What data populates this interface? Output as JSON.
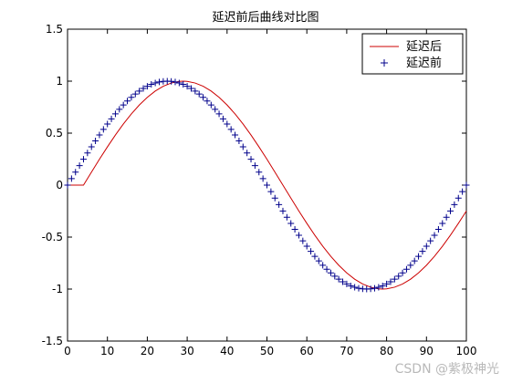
{
  "chart_data": {
    "type": "line",
    "title": "延迟前后曲线对比图",
    "xlabel": "",
    "ylabel": "",
    "xlim": [
      0,
      100
    ],
    "ylim": [
      -1.5,
      1.5
    ],
    "xticks": [
      0,
      10,
      20,
      30,
      40,
      50,
      60,
      70,
      80,
      90,
      100
    ],
    "yticks": [
      -1.5,
      -1,
      -0.5,
      0,
      0.5,
      1,
      1.5
    ],
    "xtick_labels": [
      "0",
      "10",
      "20",
      "30",
      "40",
      "50",
      "60",
      "70",
      "80",
      "90",
      "100"
    ],
    "ytick_labels": [
      "-1.5",
      "-1",
      "-0.5",
      "0",
      "0.5",
      "1",
      "1.5"
    ],
    "grid": false,
    "legend_position": "top-right",
    "series": [
      {
        "name": "延迟后",
        "style": "line",
        "color": "#cc0000",
        "x": [
          0,
          4,
          6,
          8,
          10,
          12,
          14,
          16,
          18,
          20,
          22,
          24,
          26,
          28,
          29,
          30,
          32,
          34,
          36,
          38,
          40,
          42,
          44,
          46,
          48,
          50,
          52,
          54,
          56,
          58,
          60,
          62,
          64,
          66,
          68,
          70,
          72,
          74,
          76,
          78,
          79,
          80,
          82,
          84,
          86,
          88,
          90,
          92,
          94,
          96,
          98,
          100
        ],
        "y": [
          0,
          0,
          0.125,
          0.249,
          0.368,
          0.482,
          0.588,
          0.685,
          0.771,
          0.844,
          0.905,
          0.951,
          0.982,
          0.998,
          1.0,
          0.998,
          0.982,
          0.951,
          0.905,
          0.844,
          0.771,
          0.685,
          0.588,
          0.482,
          0.368,
          0.249,
          0.125,
          0.0,
          -0.125,
          -0.249,
          -0.368,
          -0.482,
          -0.588,
          -0.685,
          -0.771,
          -0.844,
          -0.905,
          -0.951,
          -0.982,
          -0.998,
          -1.0,
          -0.998,
          -0.982,
          -0.951,
          -0.905,
          -0.844,
          -0.771,
          -0.685,
          -0.588,
          -0.482,
          -0.368,
          -0.249
        ]
      },
      {
        "name": "延迟前",
        "style": "marker",
        "marker": "+",
        "color": "#00008b",
        "x": [
          0,
          1,
          2,
          3,
          4,
          5,
          6,
          7,
          8,
          9,
          10,
          11,
          12,
          13,
          14,
          15,
          16,
          17,
          18,
          19,
          20,
          21,
          22,
          23,
          24,
          25,
          26,
          27,
          28,
          29,
          30,
          31,
          32,
          33,
          34,
          35,
          36,
          37,
          38,
          39,
          40,
          41,
          42,
          43,
          44,
          45,
          46,
          47,
          48,
          49,
          50,
          51,
          52,
          53,
          54,
          55,
          56,
          57,
          58,
          59,
          60,
          61,
          62,
          63,
          64,
          65,
          66,
          67,
          68,
          69,
          70,
          71,
          72,
          73,
          74,
          75,
          76,
          77,
          78,
          79,
          80,
          81,
          82,
          83,
          84,
          85,
          86,
          87,
          88,
          89,
          90,
          91,
          92,
          93,
          94,
          95,
          96,
          97,
          98,
          99,
          100
        ],
        "y": [
          0.0,
          0.063,
          0.125,
          0.187,
          0.249,
          0.309,
          0.368,
          0.426,
          0.482,
          0.536,
          0.588,
          0.637,
          0.685,
          0.729,
          0.771,
          0.809,
          0.844,
          0.876,
          0.905,
          0.93,
          0.951,
          0.969,
          0.982,
          0.992,
          0.998,
          1.0,
          0.998,
          0.992,
          0.982,
          0.969,
          0.951,
          0.93,
          0.905,
          0.876,
          0.844,
          0.809,
          0.771,
          0.729,
          0.685,
          0.637,
          0.588,
          0.536,
          0.482,
          0.426,
          0.368,
          0.309,
          0.249,
          0.187,
          0.125,
          0.063,
          0.0,
          -0.063,
          -0.125,
          -0.187,
          -0.249,
          -0.309,
          -0.368,
          -0.426,
          -0.482,
          -0.536,
          -0.588,
          -0.637,
          -0.685,
          -0.729,
          -0.771,
          -0.809,
          -0.844,
          -0.876,
          -0.905,
          -0.93,
          -0.951,
          -0.969,
          -0.982,
          -0.992,
          -0.998,
          -1.0,
          -0.998,
          -0.992,
          -0.982,
          -0.969,
          -0.951,
          -0.93,
          -0.905,
          -0.876,
          -0.844,
          -0.809,
          -0.771,
          -0.729,
          -0.685,
          -0.637,
          -0.588,
          -0.536,
          -0.482,
          -0.426,
          -0.368,
          -0.309,
          -0.249,
          -0.187,
          -0.125,
          -0.063,
          0.0
        ]
      }
    ]
  },
  "watermark": "CSDN @紫极神光"
}
